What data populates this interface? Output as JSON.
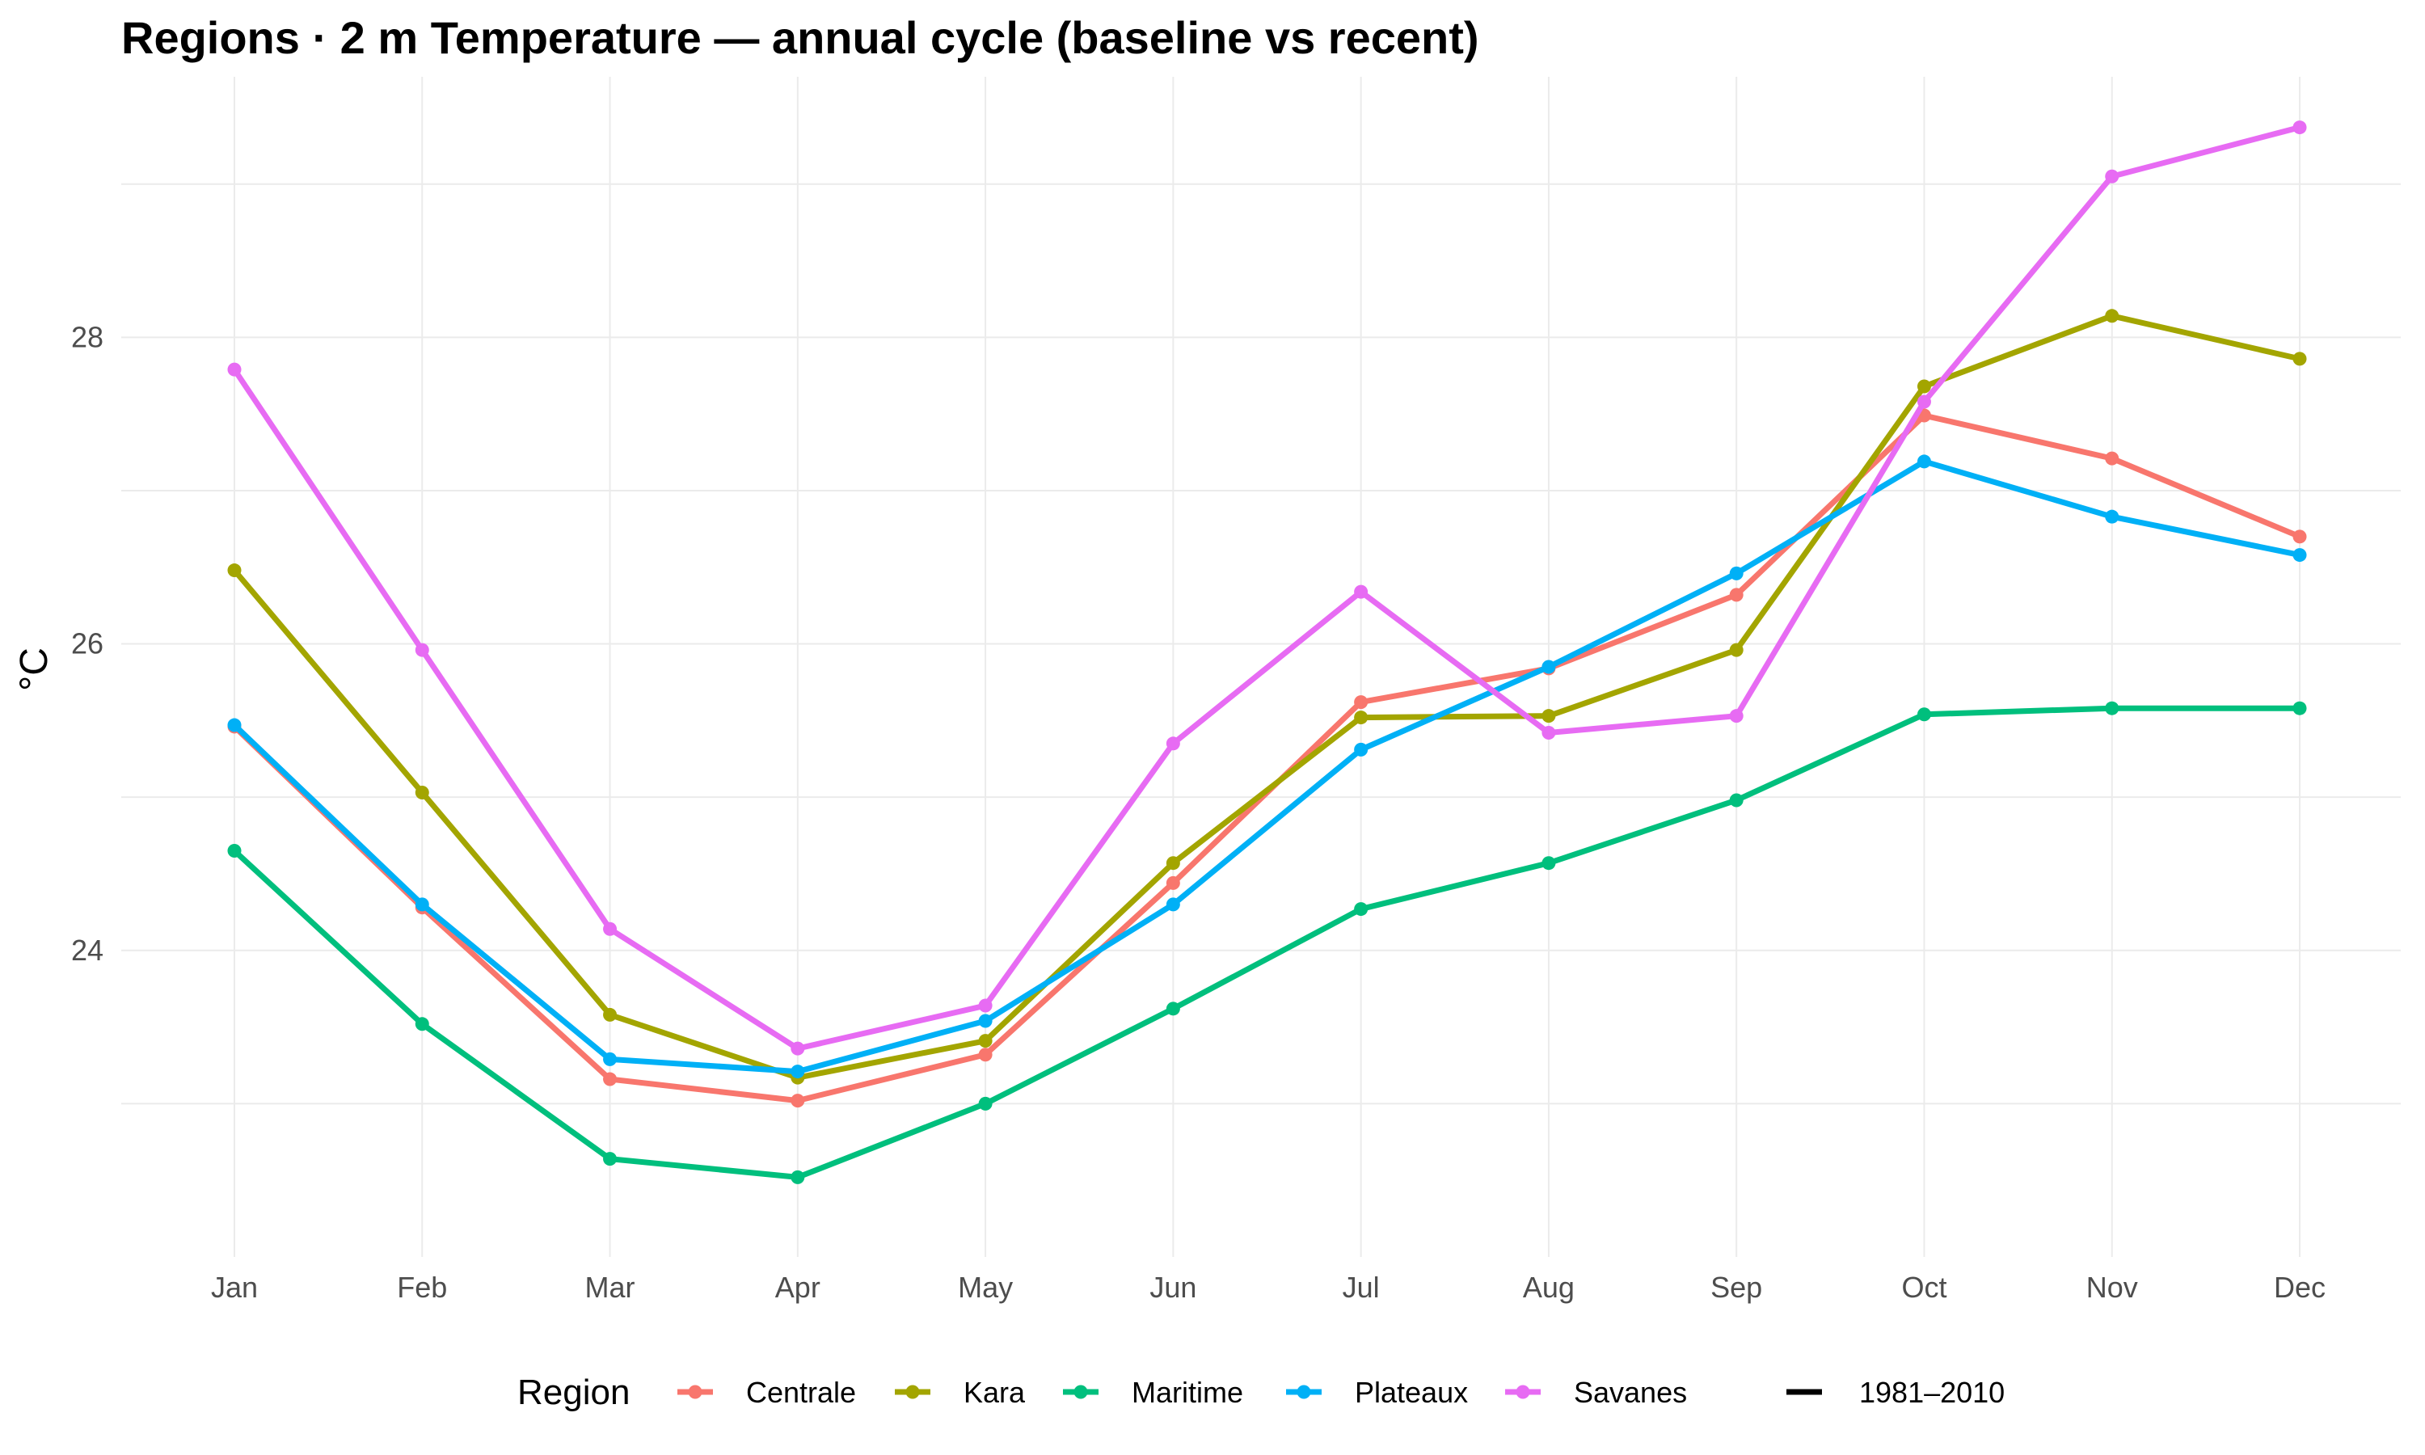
{
  "chart_data": {
    "type": "line",
    "title": "Regions · 2 m Temperature — annual cycle (baseline vs recent)",
    "xlabel": "",
    "ylabel": "°C",
    "categories": [
      "Jan",
      "Feb",
      "Mar",
      "Apr",
      "May",
      "Jun",
      "Jul",
      "Aug",
      "Sep",
      "Oct",
      "Nov",
      "Dec"
    ],
    "ylim": [
      22.0,
      29.7
    ],
    "yticks": [
      24,
      26,
      28
    ],
    "grid": true,
    "legend_position": "bottom",
    "legend_title": "Region",
    "series": [
      {
        "name": "Centrale",
        "color": "#F8766D",
        "values": [
          25.46,
          24.28,
          23.16,
          23.02,
          23.32,
          24.44,
          25.62,
          25.84,
          26.32,
          27.49,
          27.21,
          26.7
        ]
      },
      {
        "name": "Kara",
        "color": "#A3A500",
        "values": [
          26.48,
          25.03,
          23.58,
          23.17,
          23.41,
          24.57,
          25.52,
          25.53,
          25.96,
          27.68,
          28.14,
          27.86
        ]
      },
      {
        "name": "Maritime",
        "color": "#00BF7D",
        "values": [
          24.65,
          23.52,
          22.64,
          22.52,
          23.0,
          23.62,
          24.27,
          24.57,
          24.98,
          25.54,
          25.58,
          25.58
        ]
      },
      {
        "name": "Plateaux",
        "color": "#00B0F6",
        "values": [
          25.47,
          24.3,
          23.29,
          23.21,
          23.54,
          24.3,
          25.31,
          25.85,
          26.46,
          27.19,
          26.83,
          26.58
        ]
      },
      {
        "name": "Savanes",
        "color": "#E76BF3",
        "values": [
          27.79,
          25.96,
          24.14,
          23.36,
          23.64,
          25.35,
          26.34,
          25.42,
          25.53,
          27.58,
          29.05,
          29.37
        ]
      }
    ],
    "linetype_legend": {
      "label": "1981–2010",
      "color": "#000000"
    }
  }
}
